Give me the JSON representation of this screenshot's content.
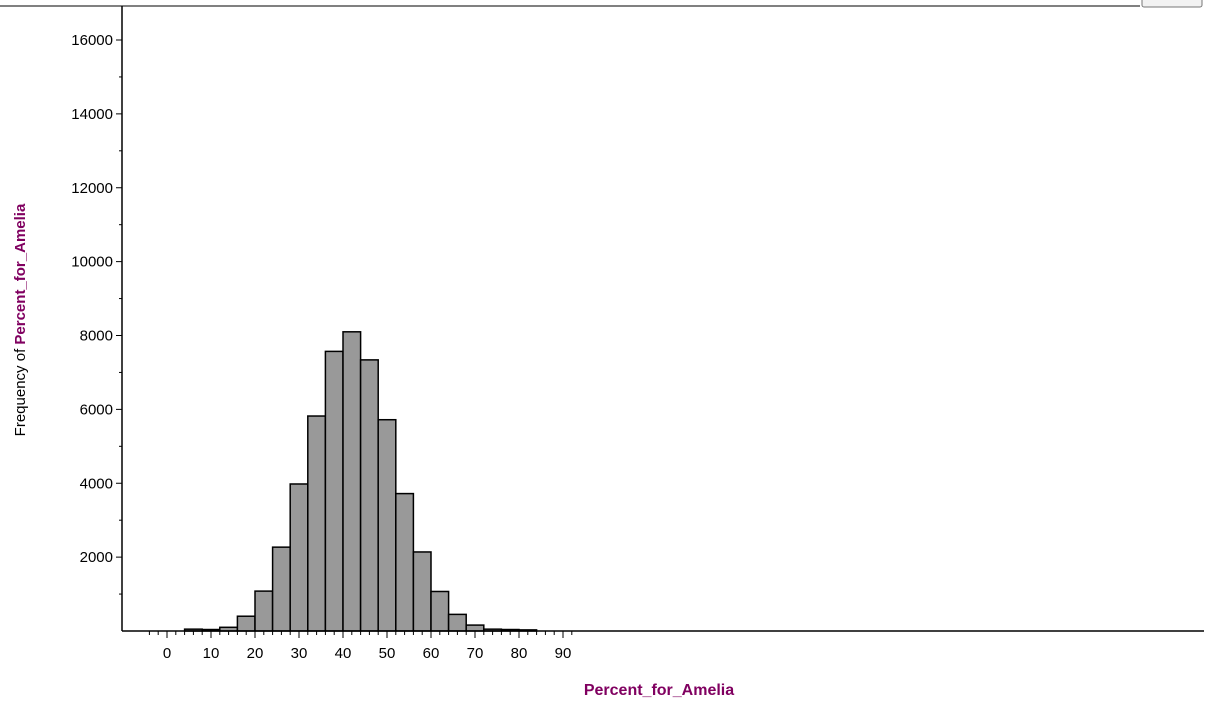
{
  "colors": {
    "bar_fill": "#999999",
    "bar_stroke": "#000000",
    "axis_title": "#800060",
    "axis": "#000000"
  },
  "chart_data": {
    "type": "bar",
    "bin_width": 4,
    "bin_edges": [
      4,
      8,
      12,
      16,
      20,
      24,
      28,
      32,
      36,
      40,
      44,
      48,
      52,
      56,
      60,
      64,
      68,
      72,
      76,
      80,
      84
    ],
    "values": [
      50,
      40,
      100,
      400,
      1080,
      2270,
      3980,
      5820,
      7570,
      8100,
      7340,
      5720,
      3720,
      2140,
      1070,
      450,
      160,
      50,
      40,
      30
    ],
    "xlabel": "Percent_for_Amelia",
    "ylabel_prefix": "Frequency of ",
    "ylabel_var": "Percent_for_Amelia",
    "xlim": [
      -5,
      95
    ],
    "ylim": [
      0,
      16800
    ],
    "x_ticks": [
      "0",
      "10",
      "20",
      "30",
      "40",
      "50",
      "60",
      "70",
      "80",
      "90"
    ],
    "y_ticks": [
      "2000",
      "4000",
      "6000",
      "8000",
      "10000",
      "12000",
      "14000",
      "16000"
    ],
    "grid": false,
    "legend": "none"
  }
}
